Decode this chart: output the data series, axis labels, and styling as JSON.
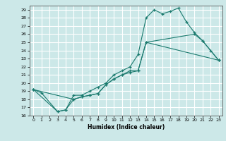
{
  "title": "",
  "xlabel": "Humidex (Indice chaleur)",
  "bg_color": "#cce8e8",
  "grid_color": "#ffffff",
  "line_color": "#1a7a6e",
  "xlim": [
    -0.5,
    23.5
  ],
  "ylim": [
    16,
    29.5
  ],
  "xticks": [
    0,
    1,
    2,
    3,
    4,
    5,
    6,
    7,
    8,
    9,
    10,
    11,
    12,
    13,
    14,
    15,
    16,
    17,
    18,
    19,
    20,
    21,
    22,
    23
  ],
  "yticks": [
    16,
    17,
    18,
    19,
    20,
    21,
    22,
    23,
    24,
    25,
    26,
    27,
    28,
    29
  ],
  "line1_x": [
    0,
    1,
    3,
    4,
    5,
    6,
    7,
    8,
    9,
    10,
    11,
    12,
    13,
    14,
    15,
    16,
    17,
    18,
    19,
    20,
    21,
    23
  ],
  "line1_y": [
    19.2,
    18.8,
    16.5,
    16.7,
    18.5,
    18.5,
    19.0,
    19.5,
    20.0,
    21.0,
    21.5,
    22.0,
    23.5,
    28.0,
    29.0,
    28.5,
    28.8,
    29.2,
    27.5,
    26.2,
    25.2,
    22.8
  ],
  "line2_x": [
    0,
    3,
    4,
    5,
    6,
    7,
    8,
    9,
    10,
    11,
    12,
    13,
    14,
    20,
    21,
    22,
    23
  ],
  "line2_y": [
    19.2,
    16.5,
    16.7,
    18.0,
    18.3,
    18.5,
    18.7,
    19.8,
    20.5,
    21.0,
    21.5,
    21.5,
    25.0,
    26.0,
    25.2,
    24.0,
    22.8
  ],
  "line3_x": [
    0,
    5,
    6,
    7,
    8,
    9,
    10,
    11,
    12,
    13,
    14,
    23
  ],
  "line3_y": [
    19.2,
    18.0,
    18.3,
    18.5,
    18.7,
    19.8,
    20.5,
    21.0,
    21.3,
    21.5,
    25.0,
    22.8
  ]
}
